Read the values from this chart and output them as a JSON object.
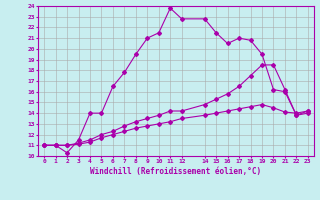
{
  "xlabel": "Windchill (Refroidissement éolien,°C)",
  "xlim": [
    -0.5,
    23.5
  ],
  "ylim": [
    10,
    24
  ],
  "xticks": [
    0,
    1,
    2,
    3,
    4,
    5,
    6,
    7,
    8,
    9,
    10,
    11,
    12,
    14,
    15,
    16,
    17,
    18,
    19,
    20,
    21,
    22,
    23
  ],
  "yticks": [
    10,
    11,
    12,
    13,
    14,
    15,
    16,
    17,
    18,
    19,
    20,
    21,
    22,
    23,
    24
  ],
  "background_color": "#c8eef0",
  "line_color": "#aa00aa",
  "grid_color": "#aaaaaa",
  "line1_x": [
    0,
    1,
    2,
    3,
    4,
    5,
    6,
    7,
    8,
    9,
    10,
    11,
    12,
    14,
    15,
    16,
    17,
    18,
    19,
    20,
    21,
    22,
    23
  ],
  "line1_y": [
    11,
    11,
    10.3,
    11.5,
    14,
    14,
    16.5,
    17.8,
    19.5,
    21,
    21.5,
    23.8,
    22.8,
    22.8,
    21.5,
    20.5,
    21,
    20.8,
    19.5,
    16.2,
    16.0,
    13.8,
    14
  ],
  "line2_x": [
    0,
    1,
    2,
    3,
    4,
    5,
    6,
    7,
    8,
    9,
    10,
    11,
    12,
    14,
    15,
    16,
    17,
    18,
    19,
    20,
    21,
    22,
    23
  ],
  "line2_y": [
    11,
    11,
    11,
    11.2,
    11.5,
    12,
    12.3,
    12.8,
    13.2,
    13.5,
    13.8,
    14.2,
    14.2,
    14.8,
    15.3,
    15.8,
    16.5,
    17.5,
    18.5,
    18.5,
    16.2,
    13.8,
    14.2
  ],
  "line3_x": [
    0,
    1,
    2,
    3,
    4,
    5,
    6,
    7,
    8,
    9,
    10,
    11,
    12,
    14,
    15,
    16,
    17,
    18,
    19,
    20,
    21,
    22,
    23
  ],
  "line3_y": [
    11,
    11,
    11,
    11.1,
    11.3,
    11.7,
    12.0,
    12.3,
    12.6,
    12.8,
    13.0,
    13.2,
    13.5,
    13.8,
    14.0,
    14.2,
    14.4,
    14.6,
    14.8,
    14.5,
    14.1,
    14.0,
    14.2
  ]
}
